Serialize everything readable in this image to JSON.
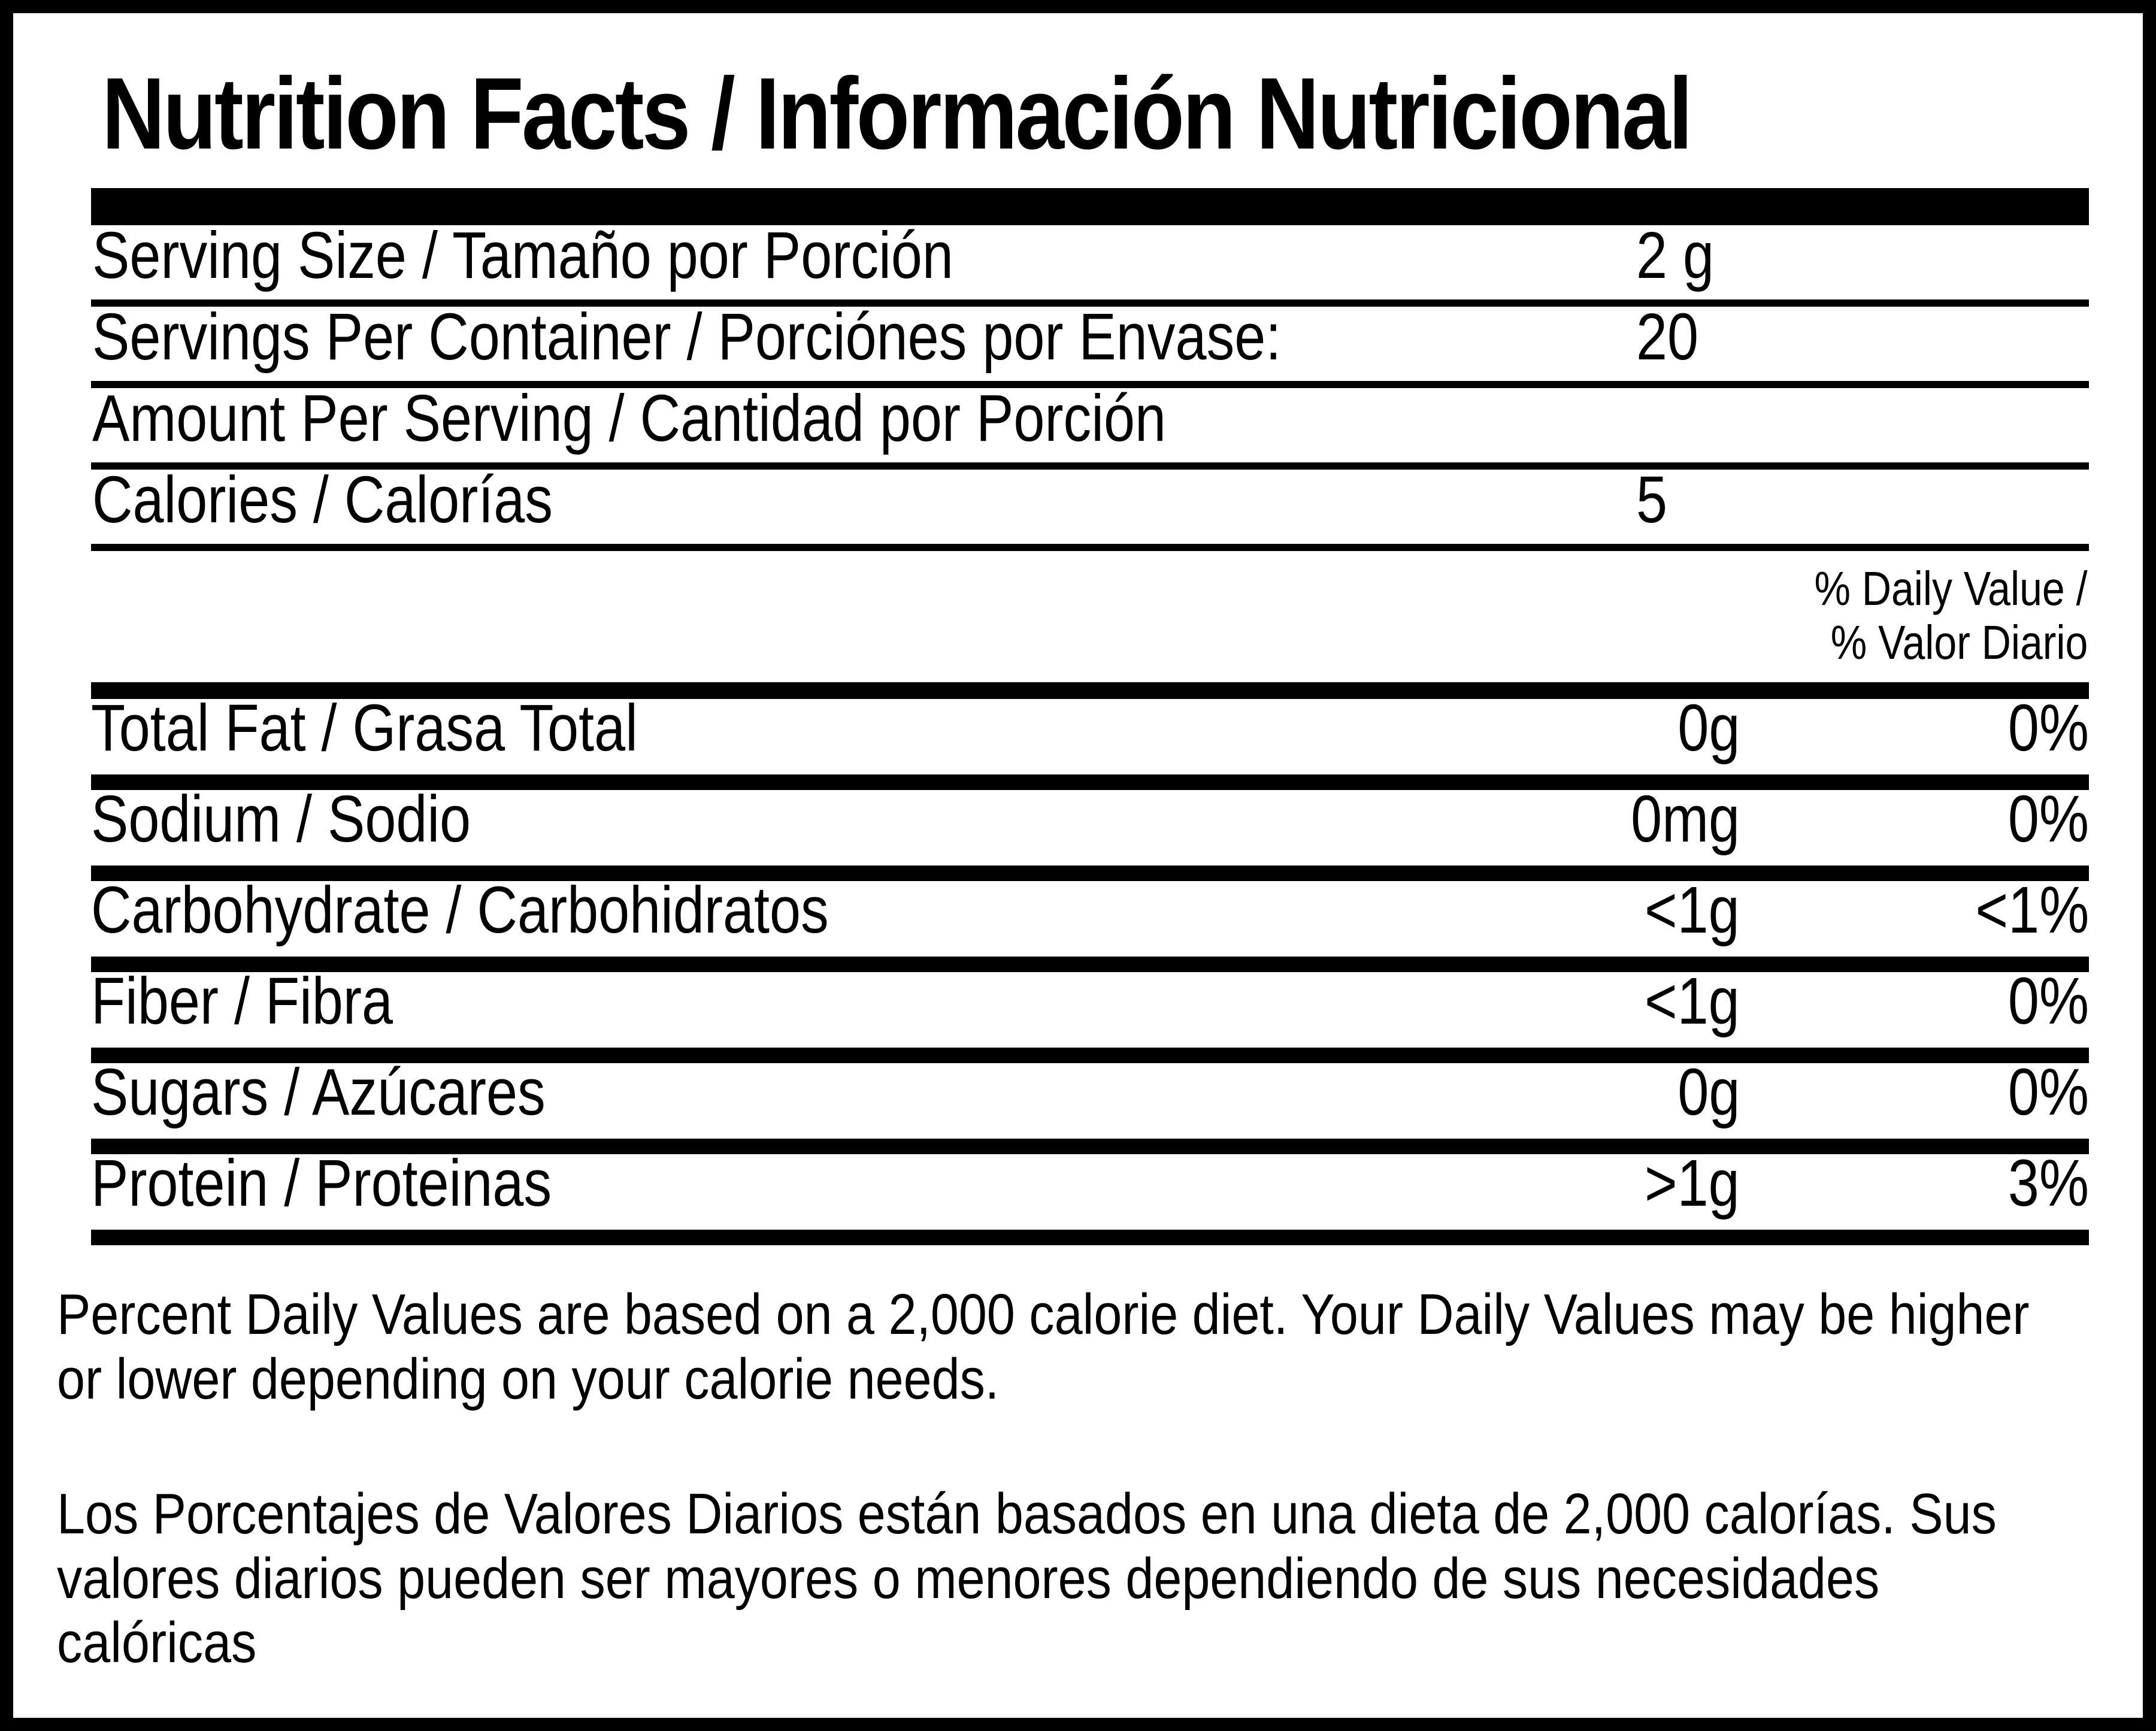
{
  "label": {
    "title": "Nutrition Facts / Información Nutricional",
    "colors": {
      "foreground": "#000000",
      "background": "#ffffff"
    },
    "serving_rows": [
      {
        "label": "Serving Size / Tamaño por Porción",
        "value": "2 g"
      },
      {
        "label": "Servings Per Container / Porciónes por Envase:",
        "value": "20"
      },
      {
        "label": "Amount Per Serving / Cantidad por Porción",
        "value": ""
      },
      {
        "label": "Calories / Calorías",
        "value": "5"
      }
    ],
    "daily_value_header": {
      "line1": "% Daily Value /",
      "line2": "% Valor Diario"
    },
    "nutrient_rows": [
      {
        "label": "Total Fat / Grasa Total",
        "amount": "0g",
        "percent": "0%"
      },
      {
        "label": "Sodium / Sodio",
        "amount": "0mg",
        "percent": "0%"
      },
      {
        "label": "Carbohydrate / Carbohidratos",
        "amount": "<1g",
        "percent": "<1%"
      },
      {
        "label": "Fiber / Fibra",
        "amount": "<1g",
        "percent": "0%"
      },
      {
        "label": "Sugars / Azúcares",
        "amount": "0g",
        "percent": "0%"
      },
      {
        "label": "Protein / Proteinas",
        "amount": ">1g",
        "percent": "3%"
      }
    ],
    "footnotes": {
      "english": "Percent Daily Values are based on a 2,000 calorie diet. Your Daily Values may be higher or lower depending on your calorie needs.",
      "spanish": "Los Porcentajes de Valores Diarios están basados en una dieta de 2,000 calorías. Sus valores diarios pueden ser mayores o menores dependiendo de sus necesidades calóricas"
    }
  }
}
